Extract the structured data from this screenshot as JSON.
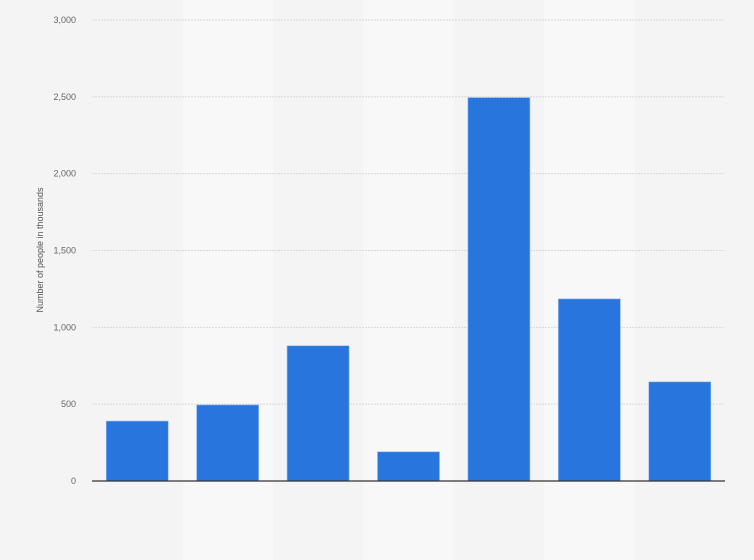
{
  "chart_data": {
    "type": "bar",
    "title": "",
    "xlabel": "",
    "ylabel": "Number of people in thousands",
    "categories": [
      "",
      "",
      "",
      "",
      "",
      "",
      ""
    ],
    "values": [
      390,
      495,
      880,
      190,
      2495,
      1185,
      645
    ],
    "ylim": [
      0,
      3000
    ],
    "yticks": [
      0,
      500,
      1000,
      1500,
      2000,
      2500,
      3000
    ],
    "ytick_labels": [
      "0",
      "500",
      "1,000",
      "1,500",
      "2,000",
      "2,500",
      "3,000"
    ],
    "grid": true,
    "bar_color": "#2876dd"
  }
}
